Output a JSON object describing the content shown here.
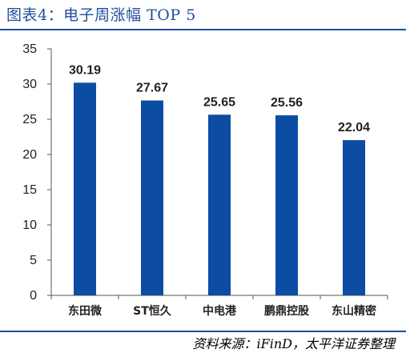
{
  "header": {
    "title": "图表4：电子周涨幅 TOP 5"
  },
  "footer": {
    "source": "资料来源：iFinD，太平洋证券整理"
  },
  "colors": {
    "bar": "#0c4ca3",
    "accent": "#1f4e9e"
  },
  "chart_data": {
    "type": "bar",
    "categories": [
      "东田微",
      "ST恒久",
      "中电港",
      "鹏鼎控股",
      "东山精密"
    ],
    "values": [
      30.19,
      27.67,
      25.65,
      25.56,
      22.04
    ],
    "value_labels": [
      "30.19",
      "27.67",
      "25.65",
      "25.56",
      "22.04"
    ],
    "yticks": [
      "0",
      "5",
      "10",
      "15",
      "20",
      "25",
      "30",
      "35"
    ],
    "ylim": [
      0,
      35
    ],
    "grid": false,
    "legend": "none"
  }
}
